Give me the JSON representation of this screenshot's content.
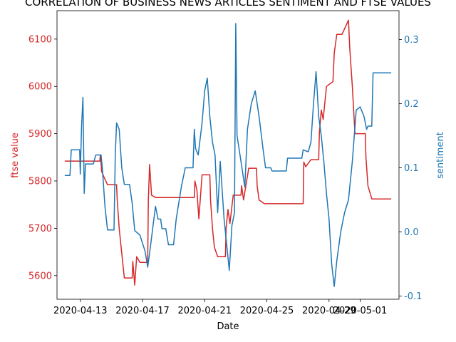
{
  "chart_data": {
    "type": "line",
    "title": "CORRELATION OF BUSINESS NEWS ARTICLES SENTIMENT AND FTSE VALUES",
    "xlabel": "Date",
    "ylabel_left": "ftse value",
    "ylabel_right": "sentiment",
    "left_axis_color": "#d62728",
    "right_axis_color": "#1f77b4",
    "xlim": [
      "2020-04-11 12:00",
      "2020-05-03 12:00"
    ],
    "ylim_left": [
      5550,
      6160
    ],
    "ylim_right": [
      -0.105,
      0.345
    ],
    "x_ticks": [
      {
        "value": "2020-04-13",
        "label": "2020-04-13"
      },
      {
        "value": "2020-04-17",
        "label": "2020-04-17"
      },
      {
        "value": "2020-04-21",
        "label": "2020-04-21"
      },
      {
        "value": "2020-04-25",
        "label": "2020-04-25"
      },
      {
        "value": "2020-04-29",
        "label": "2020-04-29"
      },
      {
        "value": "2020-05-01",
        "label": "2020-05-01"
      }
    ],
    "y_ticks_left": [
      5600,
      5700,
      5800,
      5900,
      6000,
      6100
    ],
    "y_ticks_right": [
      -0.1,
      0.0,
      0.1,
      0.2,
      0.3
    ],
    "series": [
      {
        "name": "ftse value",
        "color": "#d62728",
        "axis": "left",
        "points": [
          [
            "2020-04-12 00:00",
            5842
          ],
          [
            "2020-04-14 06:00",
            5842
          ],
          [
            "2020-04-14 07:00",
            5855
          ],
          [
            "2020-04-14 09:00",
            5820
          ],
          [
            "2020-04-14 12:00",
            5810
          ],
          [
            "2020-04-14 18:00",
            5792
          ],
          [
            "2020-04-15 08:00",
            5792
          ],
          [
            "2020-04-15 09:00",
            5760
          ],
          [
            "2020-04-15 12:00",
            5700
          ],
          [
            "2020-04-15 15:00",
            5660
          ],
          [
            "2020-04-15 20:00",
            5595
          ],
          [
            "2020-04-16 08:00",
            5595
          ],
          [
            "2020-04-16 09:00",
            5630
          ],
          [
            "2020-04-16 12:00",
            5580
          ],
          [
            "2020-04-16 15:00",
            5640
          ],
          [
            "2020-04-16 20:00",
            5628
          ],
          [
            "2020-04-17 08:00",
            5628
          ],
          [
            "2020-04-17 09:00",
            5760
          ],
          [
            "2020-04-17 11:00",
            5835
          ],
          [
            "2020-04-17 14:00",
            5770
          ],
          [
            "2020-04-17 20:00",
            5765
          ],
          [
            "2020-04-20 08:00",
            5765
          ],
          [
            "2020-04-20 09:00",
            5800
          ],
          [
            "2020-04-20 12:00",
            5780
          ],
          [
            "2020-04-20 15:00",
            5720
          ],
          [
            "2020-04-20 20:00",
            5813
          ],
          [
            "2020-04-21 08:00",
            5813
          ],
          [
            "2020-04-21 09:00",
            5760
          ],
          [
            "2020-04-21 12:00",
            5700
          ],
          [
            "2020-04-21 15:00",
            5660
          ],
          [
            "2020-04-21 20:00",
            5640
          ],
          [
            "2020-04-22 08:00",
            5640
          ],
          [
            "2020-04-22 09:00",
            5700
          ],
          [
            "2020-04-22 12:00",
            5740
          ],
          [
            "2020-04-22 15:00",
            5710
          ],
          [
            "2020-04-22 20:00",
            5770
          ],
          [
            "2020-04-23 08:00",
            5770
          ],
          [
            "2020-04-23 09:00",
            5790
          ],
          [
            "2020-04-23 12:00",
            5760
          ],
          [
            "2020-04-23 20:00",
            5827
          ],
          [
            "2020-04-24 08:00",
            5827
          ],
          [
            "2020-04-24 09:00",
            5790
          ],
          [
            "2020-04-24 12:00",
            5760
          ],
          [
            "2020-04-24 20:00",
            5752
          ],
          [
            "2020-04-27 08:00",
            5752
          ],
          [
            "2020-04-27 09:00",
            5840
          ],
          [
            "2020-04-27 12:00",
            5830
          ],
          [
            "2020-04-27 20:00",
            5845
          ],
          [
            "2020-04-28 08:00",
            5845
          ],
          [
            "2020-04-28 09:00",
            5900
          ],
          [
            "2020-04-28 12:00",
            5950
          ],
          [
            "2020-04-28 15:00",
            5930
          ],
          [
            "2020-04-28 20:00",
            6000
          ],
          [
            "2020-04-29 06:00",
            6010
          ],
          [
            "2020-04-29 08:00",
            6070
          ],
          [
            "2020-04-29 12:00",
            6110
          ],
          [
            "2020-04-29 20:00",
            6110
          ],
          [
            "2020-04-30 06:00",
            6140
          ],
          [
            "2020-04-30 08:00",
            6080
          ],
          [
            "2020-04-30 12:00",
            6000
          ],
          [
            "2020-04-30 16:00",
            5900
          ],
          [
            "2020-05-01 08:00",
            5900
          ],
          [
            "2020-05-01 09:00",
            5850
          ],
          [
            "2020-05-01 12:00",
            5790
          ],
          [
            "2020-05-01 18:00",
            5762
          ],
          [
            "2020-05-03 00:00",
            5762
          ]
        ]
      },
      {
        "name": "sentiment",
        "color": "#1f77b4",
        "axis": "right",
        "points": [
          [
            "2020-04-12 00:00",
            0.088
          ],
          [
            "2020-04-12 08:00",
            0.088
          ],
          [
            "2020-04-12 10:00",
            0.128
          ],
          [
            "2020-04-12 23:00",
            0.128
          ],
          [
            "2020-04-13 00:00",
            0.09
          ],
          [
            "2020-04-13 02:00",
            0.165
          ],
          [
            "2020-04-13 04:00",
            0.21
          ],
          [
            "2020-04-13 06:00",
            0.06
          ],
          [
            "2020-04-13 08:00",
            0.106
          ],
          [
            "2020-04-13 20:00",
            0.106
          ],
          [
            "2020-04-14 00:00",
            0.12
          ],
          [
            "2020-04-14 08:00",
            0.12
          ],
          [
            "2020-04-14 10:00",
            0.1
          ],
          [
            "2020-04-14 14:00",
            0.04
          ],
          [
            "2020-04-14 18:00",
            0.003
          ],
          [
            "2020-04-15 04:00",
            0.003
          ],
          [
            "2020-04-15 06:00",
            0.12
          ],
          [
            "2020-04-15 08:00",
            0.17
          ],
          [
            "2020-04-15 12:00",
            0.16
          ],
          [
            "2020-04-15 16:00",
            0.1
          ],
          [
            "2020-04-15 20:00",
            0.074
          ],
          [
            "2020-04-16 04:00",
            0.074
          ],
          [
            "2020-04-16 08:00",
            0.045
          ],
          [
            "2020-04-16 12:00",
            0.002
          ],
          [
            "2020-04-16 20:00",
            -0.005
          ],
          [
            "2020-04-17 04:00",
            -0.03
          ],
          [
            "2020-04-17 08:00",
            -0.055
          ],
          [
            "2020-04-17 12:00",
            -0.025
          ],
          [
            "2020-04-17 20:00",
            0.04
          ],
          [
            "2020-04-18 00:00",
            0.02
          ],
          [
            "2020-04-18 04:00",
            0.02
          ],
          [
            "2020-04-18 06:00",
            0.005
          ],
          [
            "2020-04-18 12:00",
            0.005
          ],
          [
            "2020-04-18 16:00",
            -0.02
          ],
          [
            "2020-04-19 00:00",
            -0.02
          ],
          [
            "2020-04-19 04:00",
            0.02
          ],
          [
            "2020-04-19 12:00",
            0.07
          ],
          [
            "2020-04-19 18:00",
            0.1
          ],
          [
            "2020-04-20 06:00",
            0.1
          ],
          [
            "2020-04-20 08:00",
            0.16
          ],
          [
            "2020-04-20 10:00",
            0.13
          ],
          [
            "2020-04-20 14:00",
            0.12
          ],
          [
            "2020-04-20 20:00",
            0.17
          ],
          [
            "2020-04-21 00:00",
            0.22
          ],
          [
            "2020-04-21 04:00",
            0.24
          ],
          [
            "2020-04-21 08:00",
            0.18
          ],
          [
            "2020-04-21 12:00",
            0.14
          ],
          [
            "2020-04-21 16:00",
            0.12
          ],
          [
            "2020-04-21 20:00",
            0.03
          ],
          [
            "2020-04-22 00:00",
            0.11
          ],
          [
            "2020-04-22 06:00",
            0.02
          ],
          [
            "2020-04-22 10:00",
            -0.02
          ],
          [
            "2020-04-22 14:00",
            -0.06
          ],
          [
            "2020-04-22 18:00",
            0.01
          ],
          [
            "2020-04-22 22:00",
            0.03
          ],
          [
            "2020-04-23 00:00",
            0.325
          ],
          [
            "2020-04-23 02:00",
            0.15
          ],
          [
            "2020-04-23 08:00",
            0.11
          ],
          [
            "2020-04-23 14:00",
            0.07
          ],
          [
            "2020-04-23 18:00",
            0.16
          ],
          [
            "2020-04-24 00:00",
            0.2
          ],
          [
            "2020-04-24 06:00",
            0.22
          ],
          [
            "2020-04-24 12:00",
            0.18
          ],
          [
            "2020-04-24 18:00",
            0.13
          ],
          [
            "2020-04-24 22:00",
            0.1
          ],
          [
            "2020-04-25 06:00",
            0.1
          ],
          [
            "2020-04-25 08:00",
            0.095
          ],
          [
            "2020-04-26 06:00",
            0.095
          ],
          [
            "2020-04-26 08:00",
            0.115
          ],
          [
            "2020-04-27 06:00",
            0.115
          ],
          [
            "2020-04-27 08:00",
            0.128
          ],
          [
            "2020-04-27 16:00",
            0.125
          ],
          [
            "2020-04-27 20:00",
            0.14
          ],
          [
            "2020-04-28 00:00",
            0.2
          ],
          [
            "2020-04-28 04:00",
            0.25
          ],
          [
            "2020-04-28 08:00",
            0.18
          ],
          [
            "2020-04-28 12:00",
            0.15
          ],
          [
            "2020-04-28 16:00",
            0.11
          ],
          [
            "2020-04-28 20:00",
            0.06
          ],
          [
            "2020-04-29 00:00",
            0.02
          ],
          [
            "2020-04-29 04:00",
            -0.05
          ],
          [
            "2020-04-29 08:00",
            -0.085
          ],
          [
            "2020-04-29 12:00",
            -0.045
          ],
          [
            "2020-04-29 18:00",
            0.0
          ],
          [
            "2020-04-30 00:00",
            0.03
          ],
          [
            "2020-04-30 06:00",
            0.05
          ],
          [
            "2020-04-30 12:00",
            0.11
          ],
          [
            "2020-04-30 18:00",
            0.19
          ],
          [
            "2020-05-01 00:00",
            0.195
          ],
          [
            "2020-05-01 06:00",
            0.18
          ],
          [
            "2020-05-01 10:00",
            0.16
          ],
          [
            "2020-05-01 12:00",
            0.165
          ],
          [
            "2020-05-01 18:00",
            0.165
          ],
          [
            "2020-05-01 20:00",
            0.248
          ],
          [
            "2020-05-03 00:00",
            0.248
          ]
        ]
      }
    ]
  }
}
